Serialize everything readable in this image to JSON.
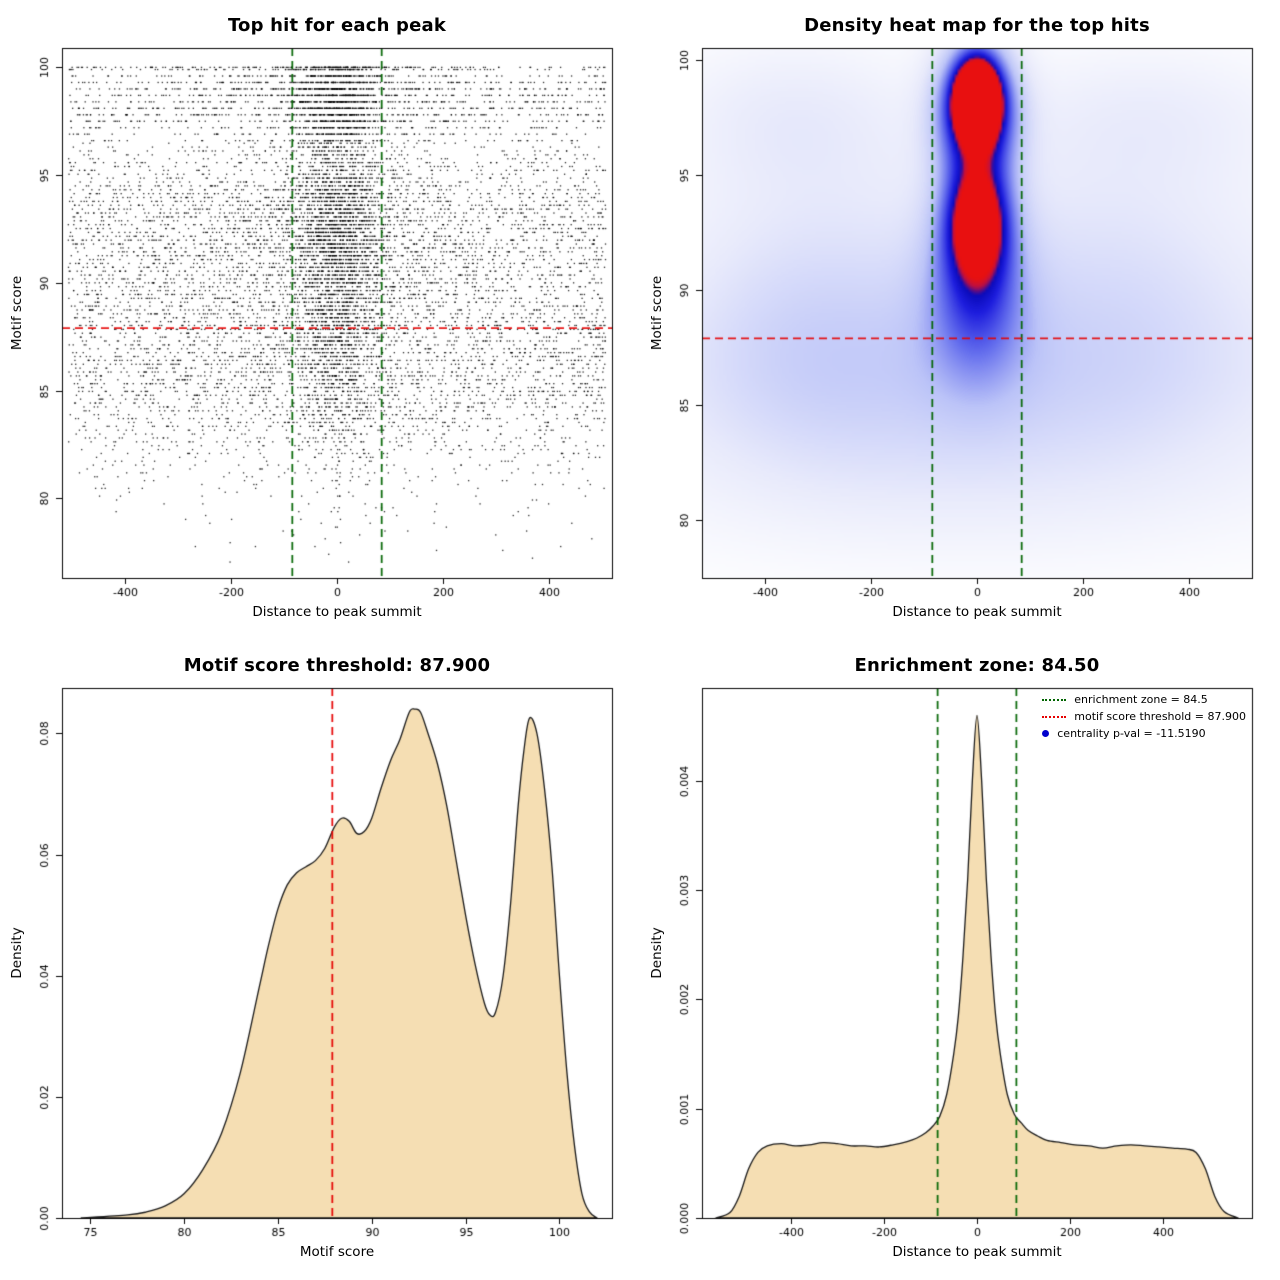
{
  "colors": {
    "enrichment_green": "#006400",
    "threshold_red": "#e60000",
    "density_fill": "#f5deb3",
    "curve_stroke": "#1a1a1a",
    "scatter_point": "#000000",
    "legend_point_blue": "#0000cd",
    "axis": "#000000",
    "background": "#ffffff"
  },
  "chart_data": [
    {
      "id": "top-hit-scatter",
      "type": "scatter",
      "title": "Top hit for each peak",
      "xlabel": "Distance to peak summit",
      "ylabel": "Motif score",
      "xlim": [
        -520,
        520
      ],
      "ylim": [
        76.3,
        100.9
      ],
      "xticks": [
        -400,
        -200,
        0,
        200,
        400
      ],
      "yticks": [
        80,
        85,
        90,
        95,
        100
      ],
      "vlines": [
        {
          "x": -84.5,
          "color": "#006400"
        },
        {
          "x": 84.5,
          "color": "#006400"
        }
      ],
      "hlines": [
        {
          "y": 87.9,
          "color": "#e60000"
        }
      ],
      "points": {
        "n": 12000,
        "seed": 42,
        "central": [
          [
            96,
            0.52
          ],
          [
            90,
            0.44
          ],
          [
            87,
            0.34
          ],
          [
            -999,
            0.24
          ]
        ],
        "sd_core": 40,
        "sd_wide": 115,
        "uniform_halfwidth": 508,
        "quantize_low": 0.18,
        "quantize_high": 0.3,
        "quantize_break": 96.5,
        "score_min": 77,
        "score_max": 100
      }
    },
    {
      "id": "top-hit-density-heatmap",
      "type": "heatmap",
      "title": "Density heat map for the top hits",
      "xlabel": "Distance to peak summit",
      "ylabel": "Motif score",
      "xlim": [
        -520,
        520
      ],
      "ylim": [
        77.5,
        100.5
      ],
      "xticks": [
        -400,
        -200,
        0,
        200,
        400
      ],
      "yticks": [
        80,
        85,
        90,
        95,
        100
      ],
      "vlines": [
        {
          "x": -84.5,
          "color": "#006400"
        },
        {
          "x": 84.5,
          "color": "#006400"
        }
      ],
      "hlines": [
        {
          "y": 87.9,
          "color": "#e60000"
        }
      ],
      "colormap": [
        [
          0,
          "#ffffff"
        ],
        [
          0.15,
          "#e8eafb"
        ],
        [
          0.35,
          "#bcc4f8"
        ],
        [
          0.55,
          "#6670ee"
        ],
        [
          0.75,
          "#1d1dde"
        ],
        [
          0.86,
          "#0b0bbb"
        ],
        [
          0.93,
          "#c01040"
        ],
        [
          1,
          "#e81010"
        ]
      ],
      "blobs": [
        {
          "x": 0,
          "y": 98.3,
          "sx": 26,
          "sy": 1.05,
          "a": 1.5
        },
        {
          "x": 0,
          "y": 97.9,
          "sx": 50,
          "sy": 1.9,
          "a": 0.8
        },
        {
          "x": 0,
          "y": 93.0,
          "sx": 38,
          "sy": 1.5,
          "a": 0.75
        },
        {
          "x": 0,
          "y": 91.2,
          "sx": 55,
          "sy": 2.2,
          "a": 0.35
        },
        {
          "x": 0,
          "y": 95.3,
          "sx": 48,
          "sy": 3.2,
          "a": 0.3
        },
        {
          "x": 0,
          "y": 88.8,
          "sx": 72,
          "sy": 2.6,
          "a": 0.22
        },
        {
          "x": 0,
          "y": 90.0,
          "sx": 460,
          "sy": 4.5,
          "a": 0.15
        },
        {
          "x": -330,
          "y": 88.5,
          "sx": 160,
          "sy": 4.0,
          "a": 0.1
        },
        {
          "x": 300,
          "y": 90.5,
          "sx": 180,
          "sy": 4.0,
          "a": 0.07
        },
        {
          "x": -350,
          "y": 97.6,
          "sx": 170,
          "sy": 2.4,
          "a": 0.12
        },
        {
          "x": 330,
          "y": 97.6,
          "sx": 200,
          "sy": 2.2,
          "a": 0.1
        },
        {
          "x": 0,
          "y": 86.5,
          "sx": 460,
          "sy": 2.5,
          "a": 0.08
        },
        {
          "x": 0,
          "y": 84.0,
          "sx": 470,
          "sy": 3.2,
          "a": 0.1
        },
        {
          "x": 0,
          "y": 81.0,
          "sx": 470,
          "sy": 2.5,
          "a": 0.05
        }
      ]
    },
    {
      "id": "motif-score-density",
      "type": "area",
      "title": "Motif score threshold: 87.900",
      "xlabel": "Motif score",
      "ylabel": "Density",
      "xlim": [
        73.5,
        102.8
      ],
      "ylim": [
        0,
        0.0875
      ],
      "xticks": [
        75,
        80,
        85,
        90,
        95,
        100
      ],
      "yticks": [
        0,
        0.02,
        0.04,
        0.06,
        0.08
      ],
      "ytick_labels": [
        "0.00",
        "0.02",
        "0.04",
        "0.06",
        "0.08"
      ],
      "vlines": [
        {
          "x": 87.9,
          "color": "#e60000"
        }
      ],
      "x": [
        74.5,
        77,
        78,
        79,
        80,
        81,
        82,
        83,
        84,
        84.5,
        85,
        85.5,
        86,
        86.5,
        87,
        87.5,
        88,
        88.4,
        88.8,
        89.2,
        89.6,
        90,
        90.5,
        91,
        91.5,
        92,
        92.3,
        92.6,
        93,
        93.5,
        94,
        94.5,
        95,
        95.5,
        96,
        96.3,
        96.6,
        97,
        97.4,
        97.8,
        98.1,
        98.4,
        98.8,
        99.2,
        99.6,
        100,
        100.4,
        100.8,
        101.2,
        101.6,
        102
      ],
      "y": [
        0,
        0.0005,
        0.001,
        0.002,
        0.004,
        0.008,
        0.014,
        0.024,
        0.038,
        0.045,
        0.051,
        0.055,
        0.057,
        0.058,
        0.059,
        0.061,
        0.0645,
        0.066,
        0.0655,
        0.0635,
        0.0638,
        0.066,
        0.071,
        0.0755,
        0.079,
        0.0835,
        0.084,
        0.0835,
        0.08,
        0.075,
        0.068,
        0.059,
        0.05,
        0.042,
        0.0355,
        0.0335,
        0.034,
        0.04,
        0.052,
        0.068,
        0.077,
        0.0825,
        0.08,
        0.071,
        0.058,
        0.04,
        0.024,
        0.012,
        0.004,
        0.001,
        0
      ]
    },
    {
      "id": "summit-distance-density",
      "type": "area",
      "title": "Enrichment zone: 84.50",
      "xlabel": "Distance to peak summit",
      "ylabel": "Density",
      "xlim": [
        -590,
        590
      ],
      "ylim": [
        0,
        0.00485
      ],
      "xticks": [
        -400,
        -200,
        0,
        200,
        400
      ],
      "yticks": [
        0,
        0.001,
        0.002,
        0.003,
        0.004
      ],
      "ytick_labels": [
        "0.000",
        "0.001",
        "0.002",
        "0.003",
        "0.004"
      ],
      "vlines": [
        {
          "x": -84.5,
          "color": "#006400"
        },
        {
          "x": 84.5,
          "color": "#006400"
        }
      ],
      "x": [
        -560,
        -530,
        -510,
        -490,
        -470,
        -450,
        -420,
        -390,
        -360,
        -330,
        -300,
        -270,
        -240,
        -210,
        -180,
        -150,
        -130,
        -110,
        -95,
        -80,
        -65,
        -50,
        -40,
        -30,
        -20,
        -10,
        0,
        10,
        20,
        30,
        40,
        50,
        65,
        80,
        95,
        110,
        130,
        150,
        180,
        210,
        240,
        270,
        300,
        330,
        360,
        390,
        420,
        450,
        470,
        490,
        510,
        530,
        560
      ],
      "y": [
        0,
        5e-05,
        0.0002,
        0.00045,
        0.0006,
        0.00066,
        0.00068,
        0.00066,
        0.00067,
        0.00069,
        0.00068,
        0.00066,
        0.00066,
        0.00065,
        0.00067,
        0.0007,
        0.00073,
        0.00078,
        0.00084,
        0.00093,
        0.00113,
        0.0015,
        0.00185,
        0.0024,
        0.0031,
        0.004,
        0.0046,
        0.004,
        0.0031,
        0.0024,
        0.00185,
        0.0015,
        0.00113,
        0.00095,
        0.00087,
        0.0008,
        0.00075,
        0.00071,
        0.00069,
        0.00067,
        0.00066,
        0.00064,
        0.00066,
        0.00067,
        0.00066,
        0.00065,
        0.00064,
        0.00063,
        0.0006,
        0.00045,
        0.0002,
        6e-05,
        0
      ],
      "legend": {
        "items": [
          {
            "label": "enrichment zone = 84.5",
            "color": "#006400",
            "marker": "dotted-line"
          },
          {
            "label": "motif score threshold = 87.900",
            "color": "#e60000",
            "marker": "dotted-line"
          },
          {
            "label": "centrality p-val = -11.5190",
            "color": "#0000cd",
            "marker": "point"
          }
        ]
      }
    }
  ]
}
